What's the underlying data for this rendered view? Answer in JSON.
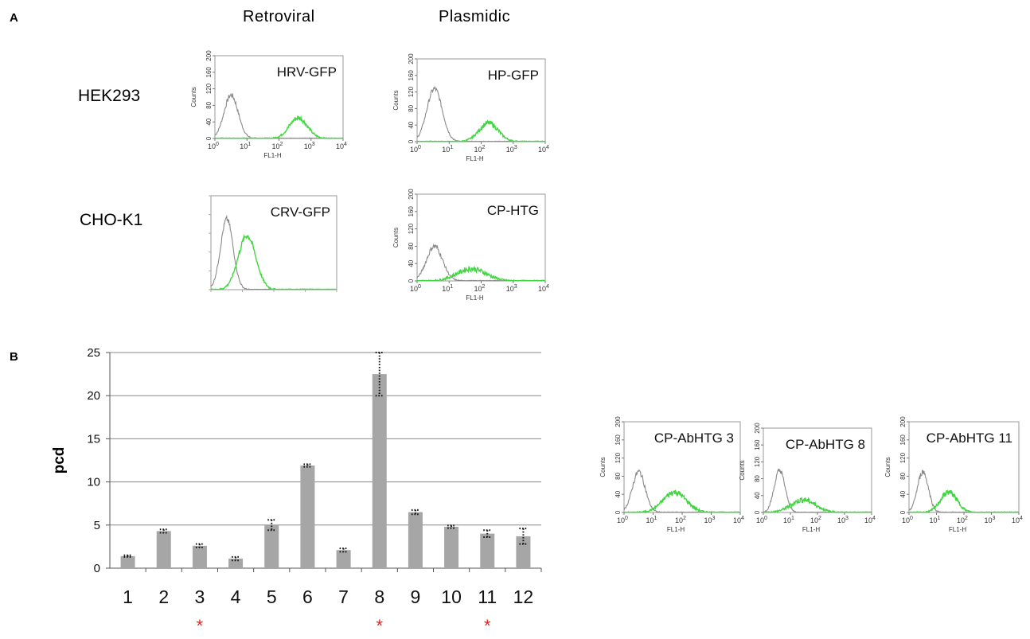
{
  "panel_a": {
    "letter": "A",
    "columns": [
      "Retroviral",
      "Plasmidic"
    ],
    "rows": [
      "HEK293",
      "CHO-K1"
    ]
  },
  "panel_b": {
    "letter": "B"
  },
  "histogram_axis": {
    "ylabel": "Counts",
    "xlabel": "FL1-H",
    "yticks": [
      "0",
      "40",
      "80",
      "120",
      "160",
      "200"
    ],
    "xtick_base": "10",
    "xtick_exps": [
      "0",
      "1",
      "2",
      "3",
      "4"
    ]
  },
  "colors": {
    "control_trace": "#8a8a8a",
    "gfp_trace": "#3fd63f",
    "bar": "#a6a6a6",
    "grid": "#888888",
    "marker": "#e8211b"
  },
  "chart_data": [
    {
      "type": "histogram",
      "label": "HRV-GFP",
      "x_scale": "log",
      "xlim": [
        1,
        10000
      ],
      "ylim": [
        0,
        200
      ],
      "series": [
        {
          "name": "",
          "color": "#8a8a8a",
          "peak_x": 3.2,
          "peak_y": 105,
          "log_sd": 0.22
        },
        {
          "name": "",
          "color": "#3fd63f",
          "peak_x": 400,
          "peak_y": 50,
          "log_sd": 0.28
        }
      ]
    },
    {
      "type": "histogram",
      "label": "HP-GFP",
      "x_scale": "log",
      "xlim": [
        1,
        10000
      ],
      "ylim": [
        0,
        200
      ],
      "series": [
        {
          "name": "",
          "color": "#8a8a8a",
          "peak_x": 3.5,
          "peak_y": 128,
          "log_sd": 0.24
        },
        {
          "name": "",
          "color": "#3fd63f",
          "peak_x": 170,
          "peak_y": 45,
          "log_sd": 0.3
        }
      ]
    },
    {
      "type": "histogram",
      "label": "CRV-GFP",
      "x_scale": "log",
      "xlim": [
        1,
        10000
      ],
      "ylim": [
        0,
        200
      ],
      "series": [
        {
          "name": "",
          "color": "#8a8a8a",
          "peak_x": 3.2,
          "peak_y": 150,
          "log_sd": 0.2
        },
        {
          "name": "",
          "color": "#3fd63f",
          "peak_x": 14,
          "peak_y": 115,
          "log_sd": 0.28
        }
      ]
    },
    {
      "type": "histogram",
      "label": "CP-HTG",
      "x_scale": "log",
      "xlim": [
        1,
        10000
      ],
      "ylim": [
        0,
        200
      ],
      "series": [
        {
          "name": "",
          "color": "#8a8a8a",
          "peak_x": 3.5,
          "peak_y": 80,
          "log_sd": 0.25
        },
        {
          "name": "",
          "color": "#3fd63f",
          "peak_x": 50,
          "peak_y": 28,
          "log_sd": 0.45
        }
      ]
    },
    {
      "type": "bar",
      "ylabel": "pcd",
      "ylim": [
        0,
        25
      ],
      "yticks": [
        "0",
        "5",
        "10",
        "15",
        "20",
        "25"
      ],
      "grid": true,
      "categories": [
        "1",
        "2",
        "3",
        "4",
        "5",
        "6",
        "7",
        "8",
        "9",
        "10",
        "11",
        "12"
      ],
      "values": [
        1.4,
        4.3,
        2.6,
        1.1,
        5.0,
        11.9,
        2.1,
        22.5,
        6.5,
        4.8,
        4.0,
        3.7
      ],
      "errors": [
        0.1,
        0.2,
        0.2,
        0.2,
        0.6,
        0.15,
        0.2,
        2.5,
        0.25,
        0.15,
        0.4,
        0.9
      ],
      "starred": [
        "3",
        "8",
        "11"
      ],
      "star_symbol": "*"
    },
    {
      "type": "histogram",
      "label": "CP-AbHTG 3",
      "x_scale": "log",
      "xlim": [
        1,
        10000
      ],
      "ylim": [
        0,
        200
      ],
      "series": [
        {
          "name": "",
          "color": "#8a8a8a",
          "peak_x": 3.2,
          "peak_y": 90,
          "log_sd": 0.22
        },
        {
          "name": "",
          "color": "#3fd63f",
          "peak_x": 55,
          "peak_y": 45,
          "log_sd": 0.4
        }
      ]
    },
    {
      "type": "histogram",
      "label": "CP-AbHTG 8",
      "x_scale": "log",
      "xlim": [
        1,
        10000
      ],
      "ylim": [
        0,
        200
      ],
      "series": [
        {
          "name": "",
          "color": "#8a8a8a",
          "peak_x": 4,
          "peak_y": 100,
          "log_sd": 0.2
        },
        {
          "name": "",
          "color": "#3fd63f",
          "peak_x": 30,
          "peak_y": 30,
          "log_sd": 0.45
        }
      ]
    },
    {
      "type": "histogram",
      "label": "CP-AbHTG 11",
      "x_scale": "log",
      "xlim": [
        1,
        10000
      ],
      "ylim": [
        0,
        200
      ],
      "series": [
        {
          "name": "",
          "color": "#8a8a8a",
          "peak_x": 3.2,
          "peak_y": 90,
          "log_sd": 0.2
        },
        {
          "name": "",
          "color": "#3fd63f",
          "peak_x": 28,
          "peak_y": 45,
          "log_sd": 0.3
        }
      ]
    }
  ]
}
